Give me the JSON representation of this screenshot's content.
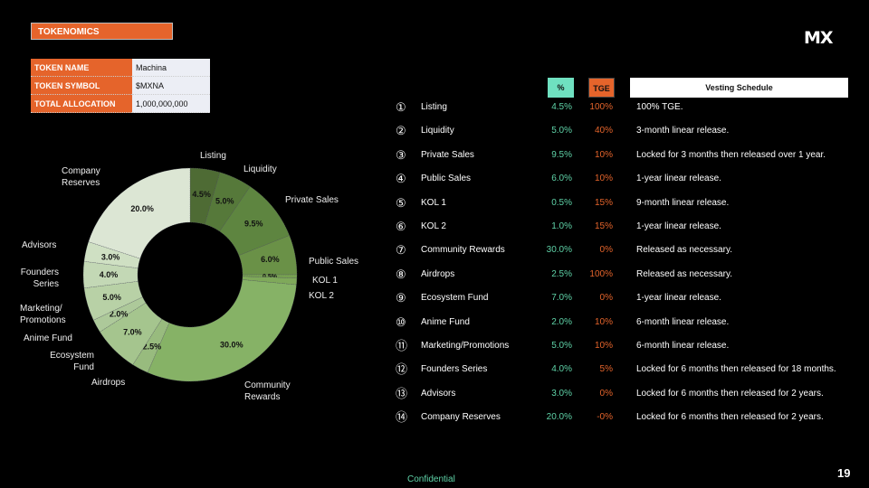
{
  "header": {
    "title": "TOKENOMICS",
    "logo": "MX"
  },
  "token_info": [
    {
      "label": "TOKEN NAME",
      "value": "Machina"
    },
    {
      "label": "TOKEN SYMBOL",
      "value": "$MXNA"
    },
    {
      "label": "TOTAL ALLOCATION",
      "value": "1,000,000,000"
    }
  ],
  "table": {
    "headers": {
      "pct": "%",
      "tge": "TGE",
      "vesting": "Vesting Schedule"
    },
    "rows": [
      {
        "num": "①",
        "name": "Listing",
        "pct": "4.5%",
        "tge": "100%",
        "vesting": "100% TGE."
      },
      {
        "num": "②",
        "name": "Liquidity",
        "pct": "5.0%",
        "tge": "40%",
        "vesting": "3-month linear release."
      },
      {
        "num": "③",
        "name": "Private Sales",
        "pct": "9.5%",
        "tge": "10%",
        "vesting": "Locked for 3 months then released over 1 year."
      },
      {
        "num": "④",
        "name": "Public Sales",
        "pct": "6.0%",
        "tge": "10%",
        "vesting": "1-year linear release."
      },
      {
        "num": "⑤",
        "name": "KOL 1",
        "pct": "0.5%",
        "tge": "15%",
        "vesting": "9-month linear release."
      },
      {
        "num": "⑥",
        "name": "KOL 2",
        "pct": "1.0%",
        "tge": "15%",
        "vesting": "1-year linear release."
      },
      {
        "num": "⑦",
        "name": "Community Rewards",
        "pct": "30.0%",
        "tge": "0%",
        "vesting": "Released as necessary."
      },
      {
        "num": "⑧",
        "name": "Airdrops",
        "pct": "2.5%",
        "tge": "100%",
        "vesting": "Released as necessary."
      },
      {
        "num": "⑨",
        "name": "Ecosystem Fund",
        "pct": "7.0%",
        "tge": "0%",
        "vesting": "1-year linear release."
      },
      {
        "num": "⑩",
        "name": "Anime Fund",
        "pct": "2.0%",
        "tge": "10%",
        "vesting": "6-month linear release."
      },
      {
        "num": "⑪",
        "name": "Marketing/Promotions",
        "pct": "5.0%",
        "tge": "10%",
        "vesting": "6-month linear release."
      },
      {
        "num": "⑫",
        "name": "Founders Series",
        "pct": "4.0%",
        "tge": "5%",
        "vesting": "Locked for 6 months then released for 18 months."
      },
      {
        "num": "⑬",
        "name": "Advisors",
        "pct": "3.0%",
        "tge": "0%",
        "vesting": "Locked for 6 months then released for 2 years."
      },
      {
        "num": "⑭",
        "name": "Company Reserves",
        "pct": "20.0%",
        "tge": "-0%",
        "vesting": "Locked for 6 months then released for 2 years."
      }
    ]
  },
  "chart_data": {
    "type": "pie",
    "donut": true,
    "categories": [
      "Listing",
      "Liquidity",
      "Private Sales",
      "Public Sales",
      "KOL 1",
      "KOL 2",
      "Community Rewards",
      "Airdrops",
      "Ecosystem Fund",
      "Anime Fund",
      "Marketing/ Promotions",
      "Founders Series",
      "Advisors",
      "Company Reserves"
    ],
    "values": [
      4.5,
      5.0,
      9.5,
      6.0,
      0.5,
      1.0,
      30.0,
      2.5,
      7.0,
      2.0,
      5.0,
      4.0,
      3.0,
      20.0
    ],
    "data_labels": [
      "4.5%",
      "5.0%",
      "9.5%",
      "6.0%",
      "0.5%",
      "1.0%",
      "30.0%",
      "2.5%",
      "7.0%",
      "2.0%",
      "5.0%",
      "4.0%",
      "3.0%",
      "20.0%"
    ],
    "colors": [
      "#4e6b34",
      "#56793a",
      "#5e8540",
      "#6a9147",
      "#76a050",
      "#7fa95a",
      "#86b266",
      "#98bb7e",
      "#a5c58e",
      "#adc99a",
      "#b8d1a6",
      "#c3d8b5",
      "#cfe0c3",
      "#dce6d4"
    ]
  },
  "footer": {
    "confidential": "Confidential",
    "page": "19"
  }
}
